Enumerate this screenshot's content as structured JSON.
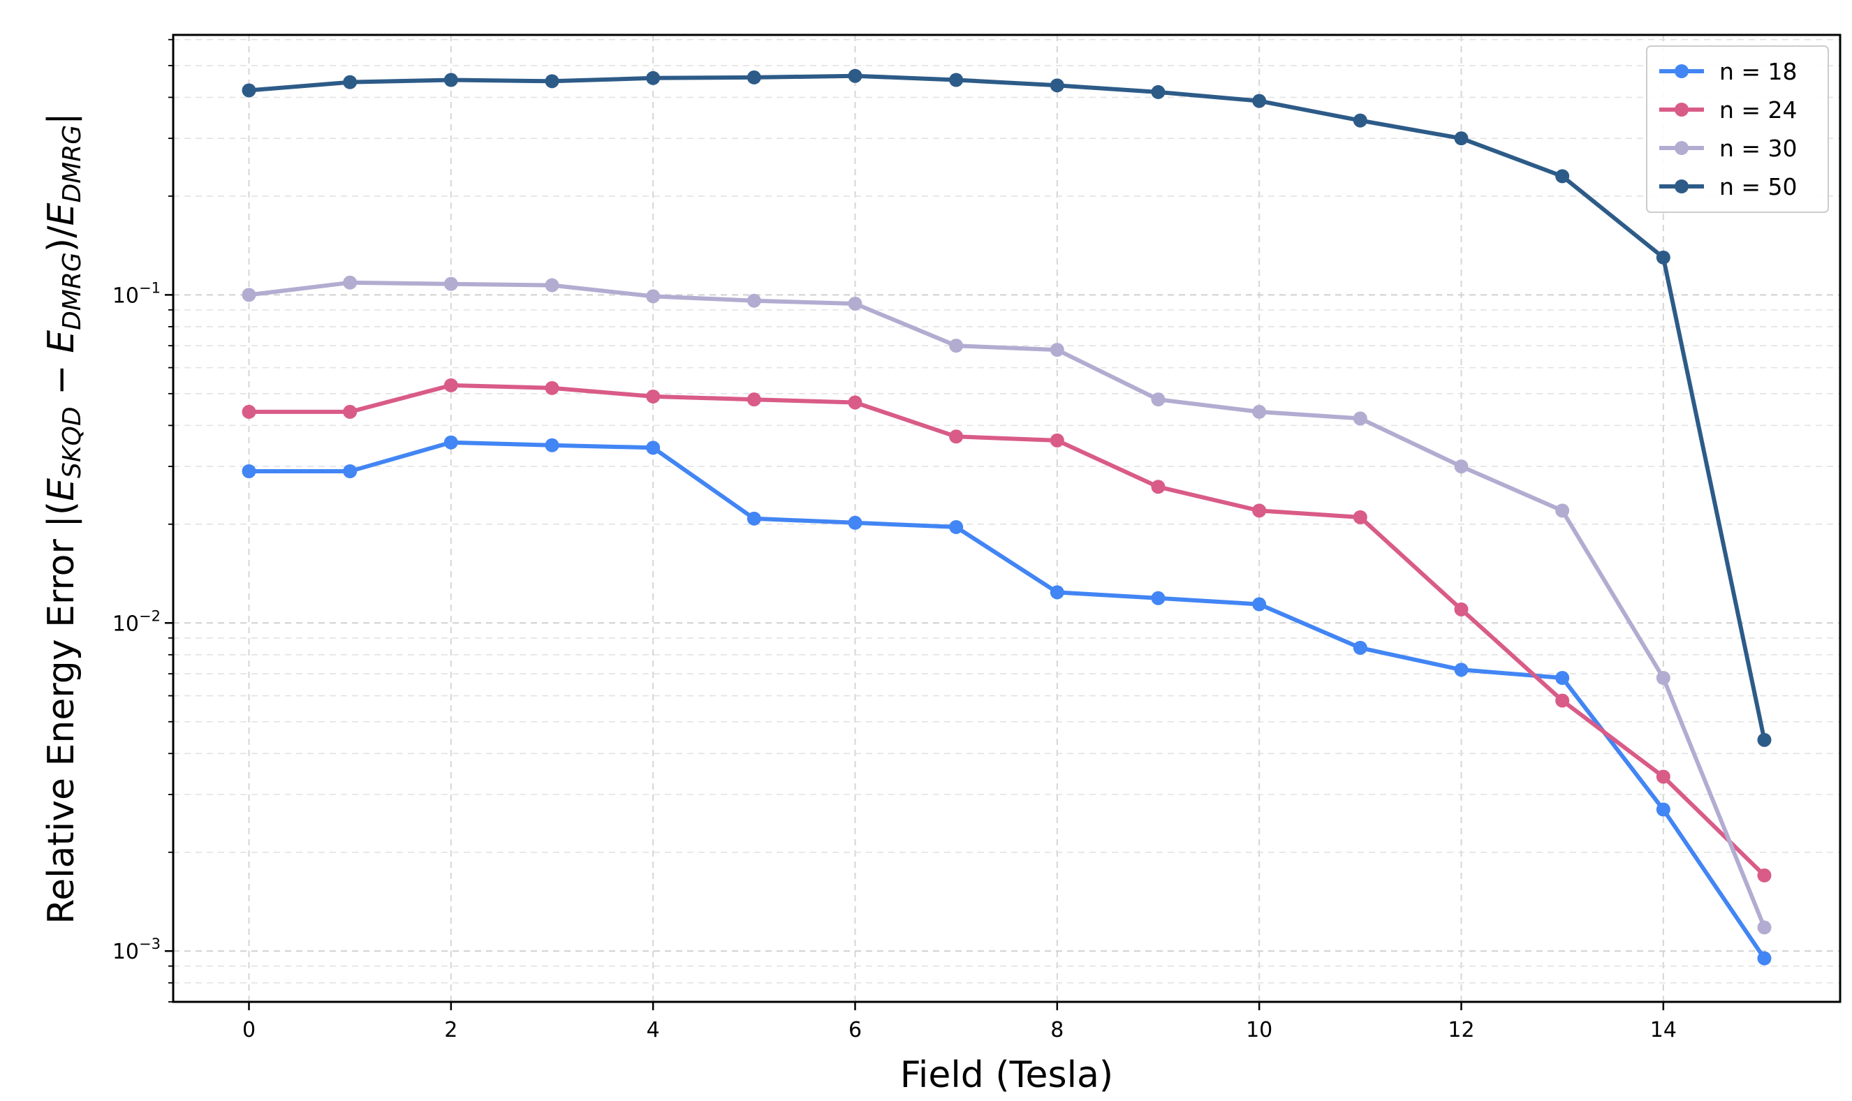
{
  "chart_data": {
    "type": "line",
    "title": "",
    "xlabel": "Field (Tesla)",
    "ylabel_parts": {
      "prefix": "Relative Energy Error |(",
      "e1": "E",
      "sub1": "SKQD",
      "minus": " − ",
      "e2": "E",
      "sub2": "DMRG",
      "mid": ")/",
      "e3": "E",
      "sub3": "DMRG",
      "suffix": "|"
    },
    "yscale": "log",
    "xlim": [
      -0.75,
      15.75
    ],
    "ylim": [
      0.0007,
      0.62
    ],
    "x_ticks": [
      {
        "value": 0,
        "label": "0"
      },
      {
        "value": 2,
        "label": "2"
      },
      {
        "value": 4,
        "label": "4"
      },
      {
        "value": 6,
        "label": "6"
      },
      {
        "value": 8,
        "label": "8"
      },
      {
        "value": 10,
        "label": "10"
      },
      {
        "value": 12,
        "label": "12"
      },
      {
        "value": 14,
        "label": "14"
      }
    ],
    "y_ticks": [
      {
        "value": 0.001,
        "base": "10",
        "exp": "−3"
      },
      {
        "value": 0.01,
        "base": "10",
        "exp": "−2"
      },
      {
        "value": 0.1,
        "base": "10",
        "exp": "−1"
      }
    ],
    "grid": true,
    "legend_position": "top-right",
    "x": [
      0,
      1,
      2,
      3,
      4,
      5,
      6,
      7,
      8,
      9,
      10,
      11,
      12,
      13,
      14,
      15
    ],
    "series": [
      {
        "name": "n = 18",
        "color": "#4285f4",
        "values": [
          0.029,
          0.029,
          0.0355,
          0.0348,
          0.0342,
          0.0208,
          0.0202,
          0.0196,
          0.0124,
          0.0119,
          0.0114,
          0.0084,
          0.0072,
          0.0068,
          0.0027,
          0.00095
        ]
      },
      {
        "name": "n = 24",
        "color": "#d95b87",
        "values": [
          0.044,
          0.044,
          0.053,
          0.052,
          0.049,
          0.048,
          0.047,
          0.037,
          0.036,
          0.026,
          0.022,
          0.021,
          0.011,
          0.0058,
          0.0034,
          0.0017
        ]
      },
      {
        "name": "n = 30",
        "color": "#b3acd1",
        "values": [
          0.1,
          0.109,
          0.108,
          0.107,
          0.099,
          0.096,
          0.094,
          0.07,
          0.068,
          0.048,
          0.044,
          0.042,
          0.03,
          0.022,
          0.0068,
          0.00118
        ]
      },
      {
        "name": "n = 50",
        "color": "#2d5b88",
        "values": [
          0.42,
          0.445,
          0.452,
          0.448,
          0.458,
          0.46,
          0.465,
          0.452,
          0.435,
          0.415,
          0.39,
          0.34,
          0.3,
          0.23,
          0.13,
          0.0044
        ]
      }
    ]
  }
}
